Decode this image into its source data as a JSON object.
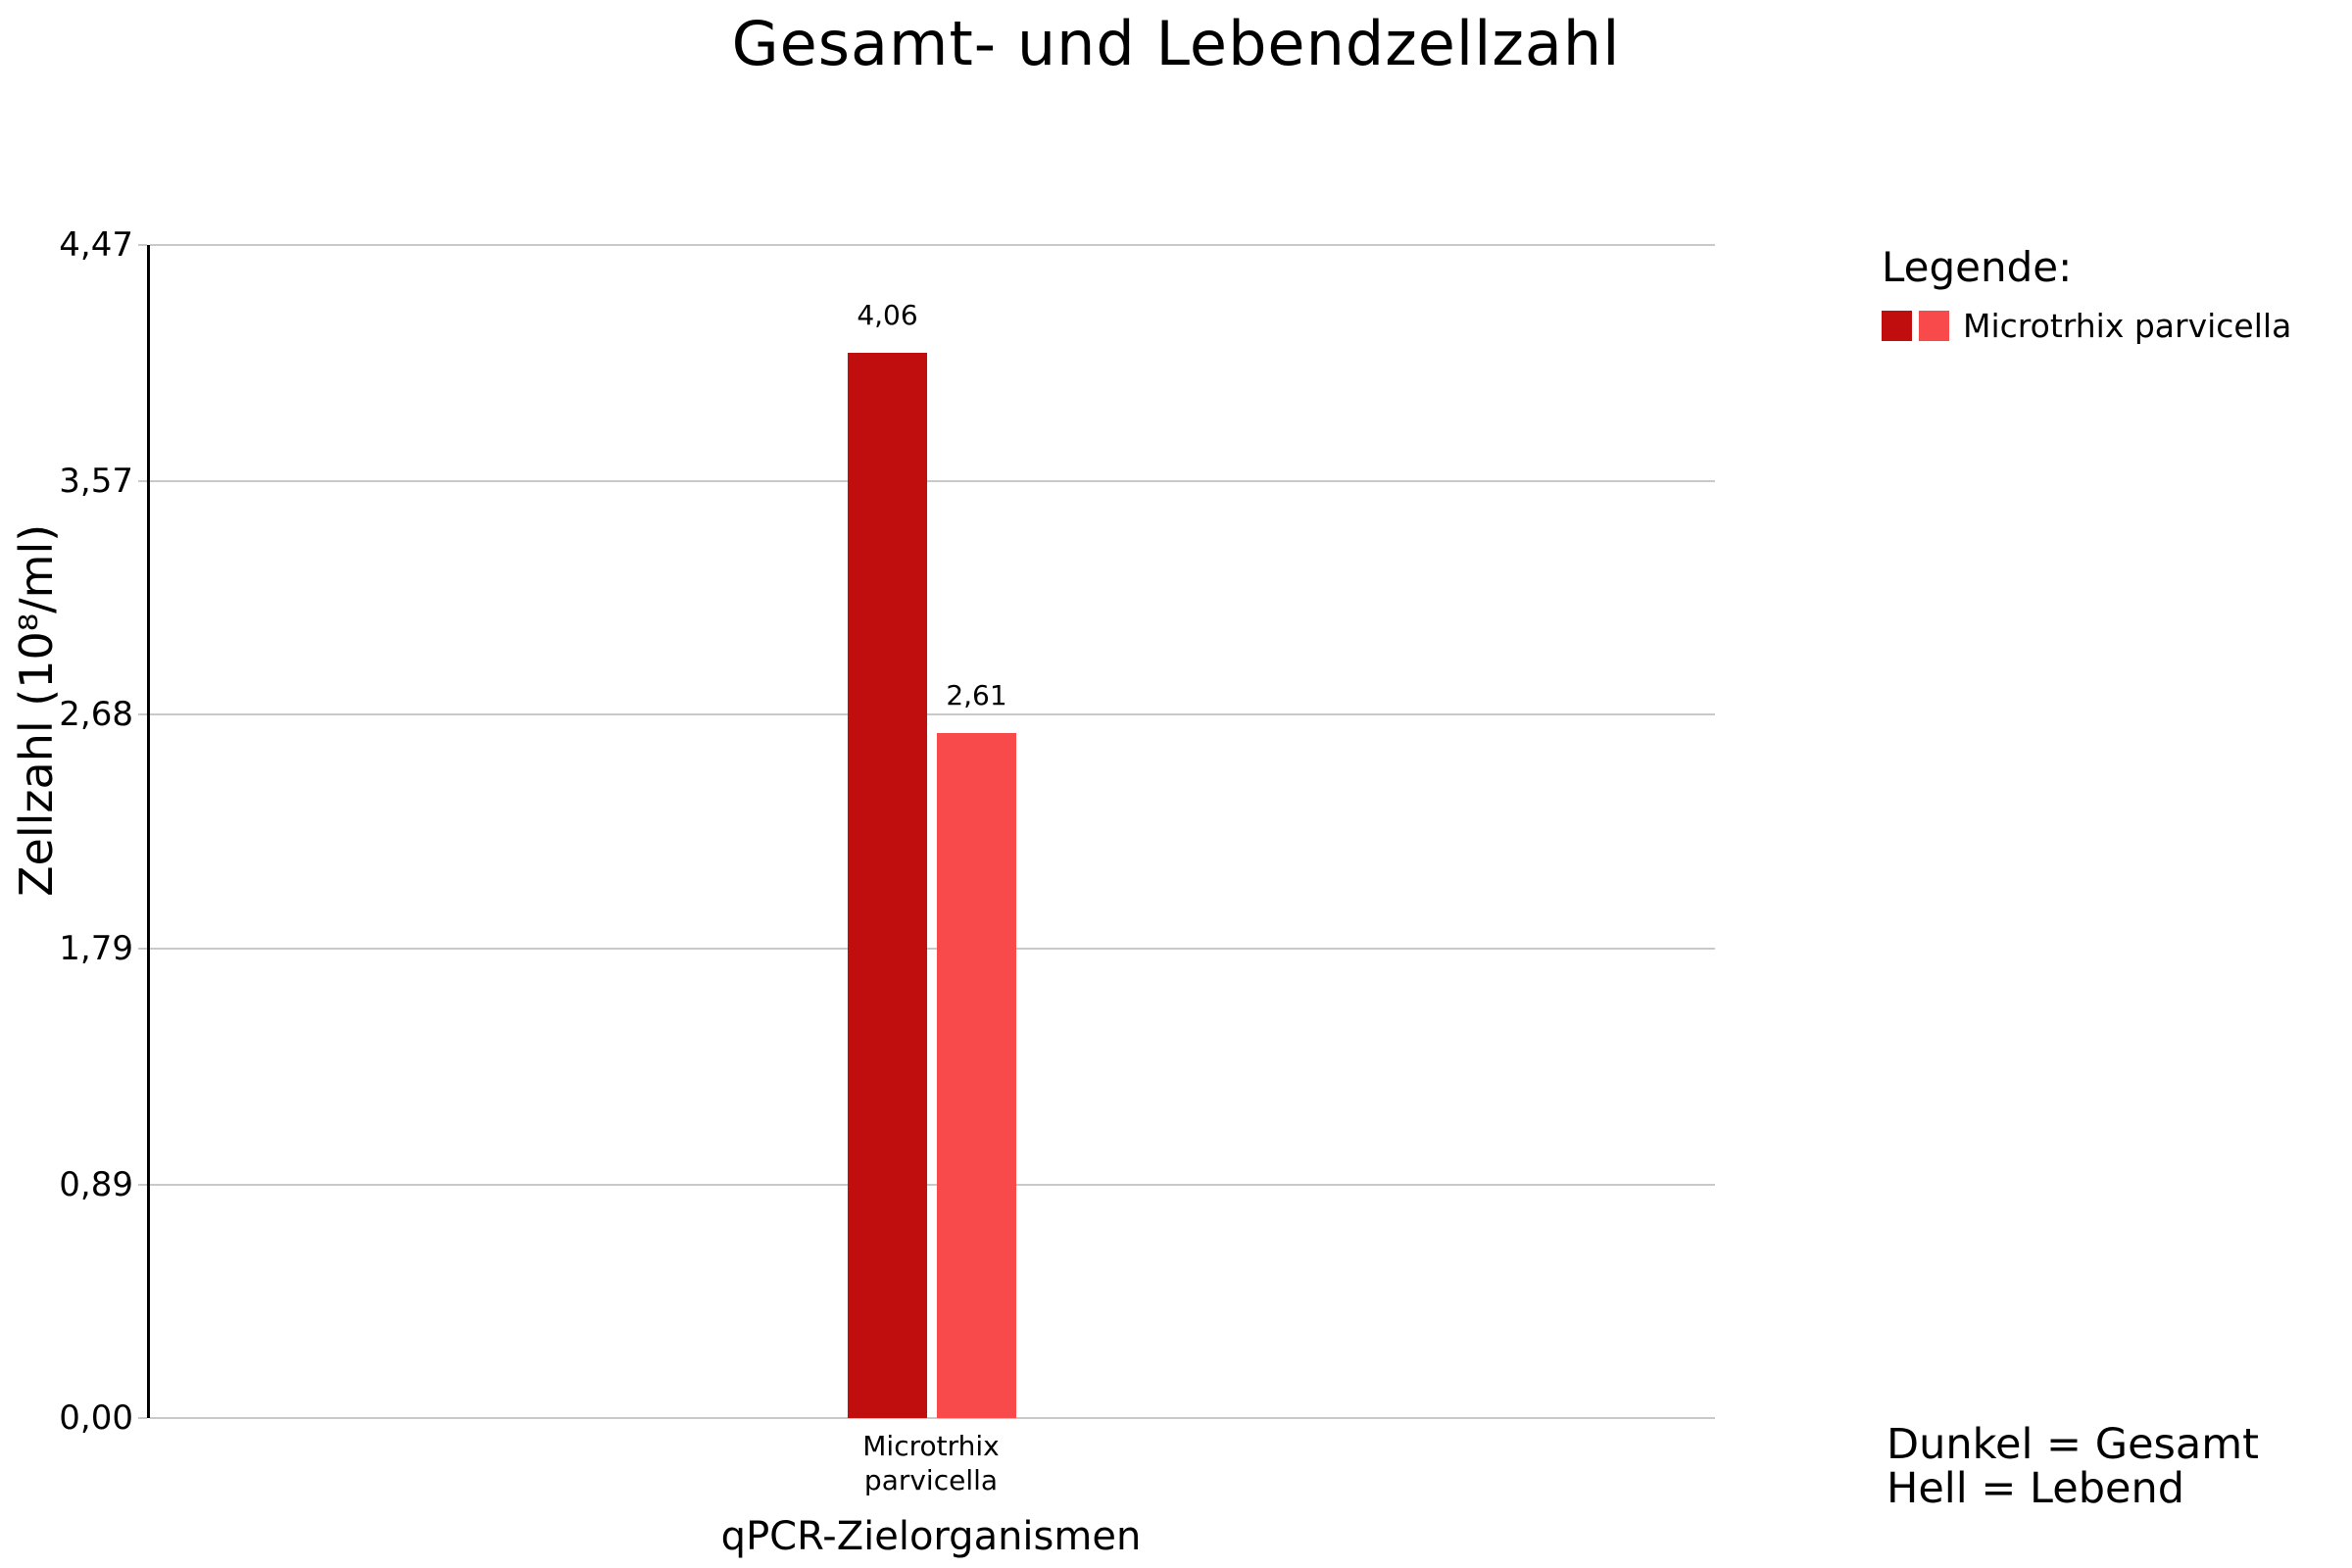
{
  "title": "Gesamt- und Lebendzellzahl",
  "chart_data": {
    "type": "bar",
    "title": "Gesamt- und Lebendzellzahl",
    "xlabel": "qPCR-Zielorganismen",
    "ylabel": "Zellzahl (10⁸/ml)",
    "ylim": [
      0,
      4.47
    ],
    "grid": true,
    "legend_position": "right",
    "categories": [
      "Microtrhix parvicella"
    ],
    "series": [
      {
        "name": "Gesamt",
        "values": [
          4.06
        ],
        "value_labels": [
          "4,06"
        ],
        "color": "#c00d0d"
      },
      {
        "name": "Lebend",
        "values": [
          2.61
        ],
        "value_labels": [
          "2,61"
        ],
        "color": "#f84a4a"
      }
    ],
    "yticks": [
      {
        "value": 0.0,
        "label": "0,00"
      },
      {
        "value": 0.89,
        "label": "0,89"
      },
      {
        "value": 1.79,
        "label": "1,79"
      },
      {
        "value": 2.68,
        "label": "2,68"
      },
      {
        "value": 3.57,
        "label": "3,57"
      },
      {
        "value": 4.47,
        "label": "4,47"
      }
    ]
  },
  "x_tick": {
    "line1": "Microtrhix",
    "line2": "parvicella"
  },
  "legend": {
    "heading": "Legende:",
    "items": [
      {
        "label": "Microtrhix parvicella",
        "colors": [
          "#c00d0d",
          "#f84a4a"
        ]
      }
    ]
  },
  "annotation": {
    "line1": "Dunkel = Gesamt",
    "line2": "Hell = Lebend"
  },
  "colors": {
    "dark_bar": "#c00d0d",
    "light_bar": "#f84a4a",
    "gridline": "#c9c9c9",
    "axis": "#000000"
  }
}
